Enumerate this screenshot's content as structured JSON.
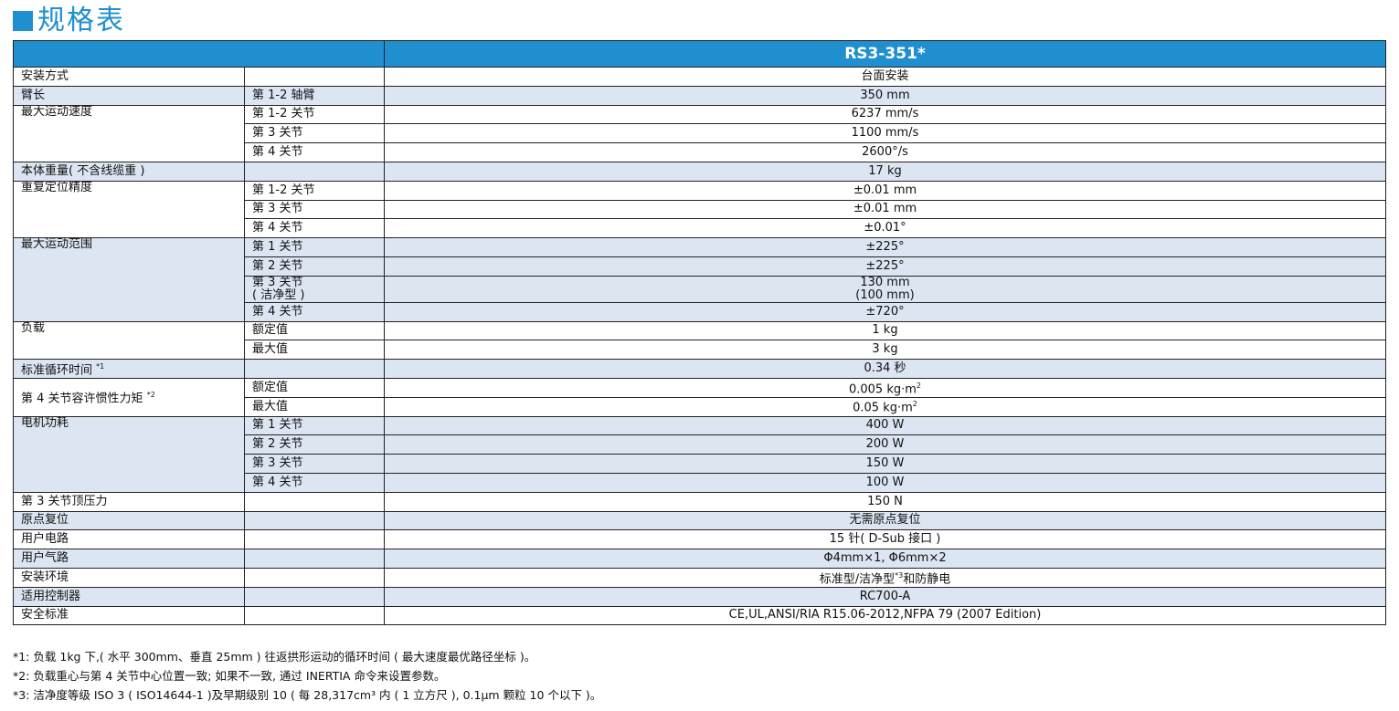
{
  "title": "规格表",
  "header": {
    "blank": "",
    "model": "RS3-351*"
  },
  "rows": [
    {
      "c1": "安装方式",
      "c2": "",
      "c3": "台面安装",
      "c3b": ""
    },
    {
      "c1": "臂长",
      "c2": "第 1-2 轴臂",
      "c3": "350 mm",
      "c3b": ""
    },
    {
      "c1": "最大运动速度",
      "c2": "第 1-2 关节",
      "c3": "6237 mm/s",
      "c3b": ""
    },
    {
      "c1": "",
      "c2": "第 3 关节",
      "c3": "1100 mm/s",
      "c3b": ""
    },
    {
      "c1": "",
      "c2": "第 4 关节",
      "c3": "2600°/s",
      "c3b": ""
    },
    {
      "c1": "本体重量( 不含线缆重 )",
      "c2": "",
      "c3": "17 kg",
      "c3b": ""
    },
    {
      "c1": "重复定位精度",
      "c2": "第 1-2 关节",
      "c3": "±0.01 mm",
      "c3b": ""
    },
    {
      "c1": "",
      "c2": "第 3 关节",
      "c3": "±0.01 mm",
      "c3b": ""
    },
    {
      "c1": "",
      "c2": "第 4 关节",
      "c3": "±0.01°",
      "c3b": ""
    },
    {
      "c1": "最大运动范围",
      "c2": "第 1 关节",
      "c3": "±225°",
      "c3b": ""
    },
    {
      "c1": "",
      "c2": "第 2 关节",
      "c3": "±225°",
      "c3b": ""
    },
    {
      "c1": "",
      "c2": "第 3 关节",
      "c2b": "( 洁净型 )",
      "c3": "130 mm",
      "c3b": "(100 mm)"
    },
    {
      "c1": "",
      "c2": "第 4 关节",
      "c3": "±720°",
      "c3b": ""
    },
    {
      "c1": "负载",
      "c2": "额定值",
      "c3": "1 kg",
      "c3b": ""
    },
    {
      "c1": "",
      "c2": "最大值",
      "c3": "3 kg",
      "c3b": ""
    },
    {
      "c1": "标准循环时间",
      "c1sup": "*1",
      "c2": "",
      "c3": "0.34 秒",
      "c3b": ""
    },
    {
      "c1": "第 4 关节容许惯性力矩",
      "c1sup": "*2",
      "c2": "额定值",
      "c3": "0.005 kg·m",
      "c3sup": "2"
    },
    {
      "c1": "",
      "c2": "最大值",
      "c3": "0.05 kg·m",
      "c3sup": "2"
    },
    {
      "c1": "电机功耗",
      "c2": "第 1 关节",
      "c3": "400 W",
      "c3b": ""
    },
    {
      "c1": "",
      "c2": "第 2 关节",
      "c3": "200 W",
      "c3b": ""
    },
    {
      "c1": "",
      "c2": "第 3 关节",
      "c3": "150 W",
      "c3b": ""
    },
    {
      "c1": "",
      "c2": "第 4 关节",
      "c3": "100 W",
      "c3b": ""
    },
    {
      "c1": "第 3 关节顶压力",
      "c2": "",
      "c3": "150 N",
      "c3b": ""
    },
    {
      "c1": "原点复位",
      "c2": "",
      "c3": "无需原点复位",
      "c3b": ""
    },
    {
      "c1": "用户电路",
      "c2": "",
      "c3": "15 针( D-Sub 接口 )",
      "c3b": ""
    },
    {
      "c1": "用户气路",
      "c2": "",
      "c3": "Φ4mm×1, Φ6mm×2",
      "c3b": ""
    },
    {
      "c1": "安装环境",
      "c2": "",
      "c3": "标准型/洁净型",
      "c3sup": "*3",
      "c3tail": "和防静电"
    },
    {
      "c1": "适用控制器",
      "c2": "",
      "c3": "RC700-A",
      "c3b": ""
    },
    {
      "c1": "安全标准",
      "c2": "",
      "c3": "CE,UL,ANSI/RIA R15.06-2012,NFPA 79 (2007 Edition)",
      "c3b": ""
    }
  ],
  "notes": [
    "*1: 负载 1kg 下,( 水平 300mm、垂直 25mm ) 往返拱形运动的循环时间 ( 最大速度最优路径坐标 )。",
    "*2: 负载重心与第 4 关节中心位置一致; 如果不一致, 通过 INERTIA 命令来设置参数。",
    "*3: 洁净度等级 ISO 3 ( ISO14644-1 )及早期级别 10 ( 每 28,317cm³ 内 ( 1 立方尺 ), 0.1μm 颗粒 10 个以下 )。"
  ]
}
